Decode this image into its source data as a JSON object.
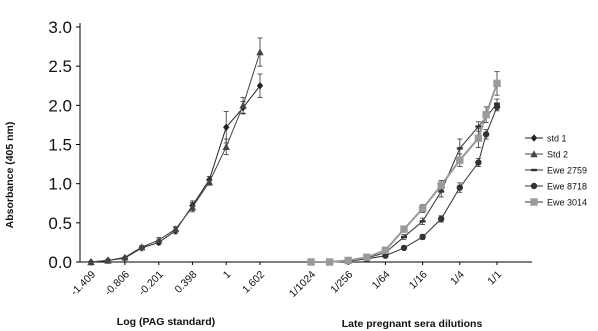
{
  "chart_data": {
    "type": "line",
    "y_axis": {
      "label": "Absorbance (405 nm)",
      "range": [
        0,
        3.0
      ],
      "ticks": [
        0.0,
        0.5,
        1.0,
        1.5,
        2.0,
        2.5,
        3.0
      ],
      "tick_labels": [
        "0.0",
        "0.5",
        "1.0",
        "1.5",
        "2.0",
        "2.5",
        "3.0"
      ]
    },
    "panels": [
      {
        "xlabel": "Log (PAG standard)",
        "tick_labels": [
          "-1.409",
          "-0.806",
          "-0.201",
          "0.398",
          "1",
          "1.602"
        ],
        "x": [
          -1.409,
          -1.107,
          -0.806,
          -0.504,
          -0.201,
          0.098,
          0.398,
          0.699,
          1,
          1.301,
          1.602
        ]
      },
      {
        "xlabel": "Late pregnant sera dilutions",
        "tick_labels": [
          "1/1024",
          "1/256",
          "1/64",
          "1/16",
          "1/4",
          "1/1"
        ],
        "x": [
          "1/1024",
          "1/512",
          "1/256",
          "1/128",
          "1/64",
          "1/32",
          "1/16",
          "1/8",
          "1/4",
          "1/2",
          "1/1"
        ]
      }
    ],
    "series": [
      {
        "name": "std 1",
        "panel": 0,
        "marker": "diamond",
        "color": "#222222",
        "values": [
          0.0,
          0.02,
          0.05,
          0.18,
          0.25,
          0.4,
          0.72,
          1.05,
          1.72,
          1.97,
          2.25
        ],
        "errors": [
          0,
          0,
          0,
          0.02,
          0.03,
          0.04,
          0.06,
          0.04,
          0.2,
          0.08,
          0.15
        ]
      },
      {
        "name": "Std 2",
        "panel": 0,
        "marker": "triangle",
        "color": "#444444",
        "values": [
          0.0,
          0.02,
          0.06,
          0.19,
          0.28,
          0.42,
          0.7,
          1.02,
          1.47,
          2.0,
          2.68
        ],
        "errors": [
          0,
          0,
          0,
          0.02,
          0.03,
          0.03,
          0.06,
          0.04,
          0.1,
          0.1,
          0.18
        ]
      },
      {
        "name": "Ewe 2759",
        "panel": 1,
        "marker": "dash",
        "color": "#333333",
        "values": [
          0.0,
          0.0,
          0.02,
          0.05,
          0.12,
          0.32,
          0.52,
          0.9,
          1.45,
          1.73,
          2.02
        ],
        "errors": [
          0,
          0,
          0,
          0,
          0.02,
          0.03,
          0.04,
          0.07,
          0.12,
          0.06,
          0.06
        ]
      },
      {
        "name": "Ewe 8718",
        "panel": 1,
        "marker": "circle",
        "color": "#333333",
        "values": [
          0.0,
          0.0,
          0.01,
          0.04,
          0.08,
          0.18,
          0.32,
          0.55,
          0.95,
          1.27,
          1.63,
          1.98
        ],
        "x_override": [
          "1/1024",
          "1/512",
          "1/256",
          "1/128",
          "1/64",
          "1/32",
          "1/16",
          "1/8",
          "1/4",
          "1/2",
          "1/1.5",
          "1/1"
        ],
        "errors": [
          0,
          0,
          0,
          0,
          0,
          0.02,
          0.03,
          0.04,
          0.06,
          0.05,
          0.06,
          0.05
        ]
      },
      {
        "name": "Ewe 3014",
        "panel": 1,
        "marker": "square",
        "color": "#9a9a9a",
        "values": [
          0.0,
          0.0,
          0.02,
          0.06,
          0.15,
          0.42,
          0.68,
          0.98,
          1.3,
          1.58,
          1.88,
          2.28
        ],
        "x_override": [
          "1/1024",
          "1/512",
          "1/256",
          "1/128",
          "1/64",
          "1/32",
          "1/16",
          "1/8",
          "1/4",
          "1/2",
          "1/1.5",
          "1/1"
        ],
        "errors": [
          0,
          0,
          0,
          0,
          0.02,
          0.04,
          0.05,
          0.06,
          0.08,
          0.12,
          0.1,
          0.15
        ]
      }
    ],
    "legend": {
      "placement": "right",
      "entries": [
        "std 1",
        "Std 2",
        "Ewe 2759",
        "Ewe 8718",
        "Ewe 3014"
      ]
    },
    "grid": false
  }
}
